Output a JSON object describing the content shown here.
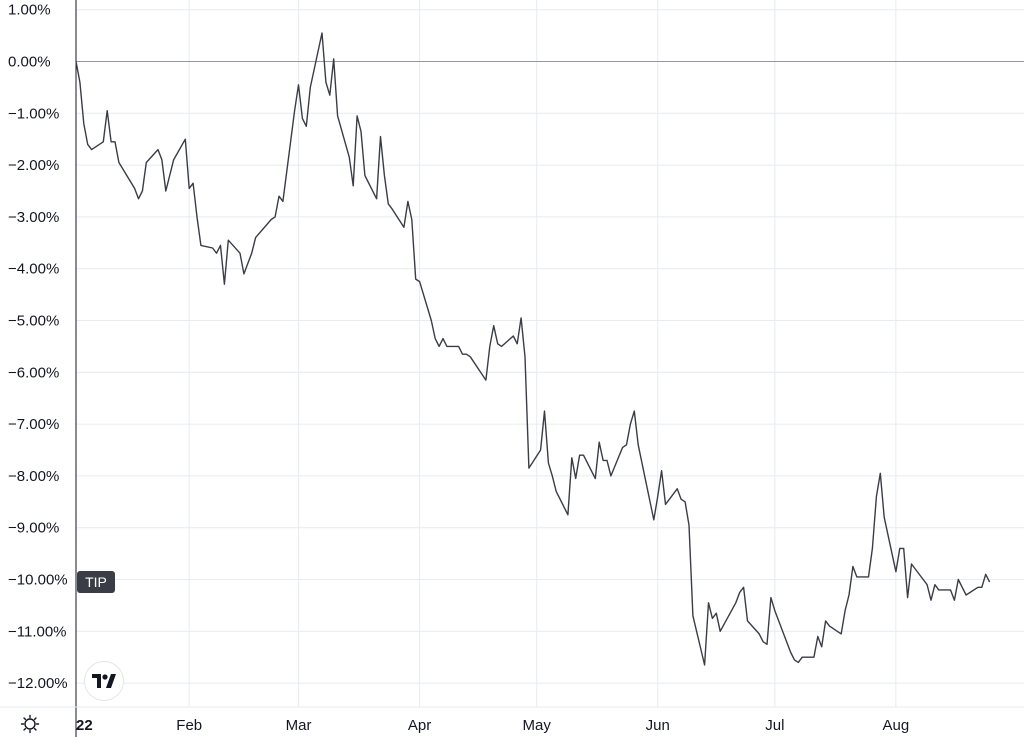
{
  "colors": {
    "series": "#3a3d46",
    "grid": "#e6ecf1",
    "zero_line": "#9598a1",
    "text": "#131722",
    "badge_bg": "#3a3d46",
    "badge_text": "#ffffff"
  },
  "series_badge": {
    "label": "TIP"
  },
  "icons": {
    "logo": "tradingview-logo-icon",
    "settings": "gear-icon"
  },
  "chart_data": {
    "type": "line",
    "x_axis_type": "date",
    "y_tick_labels": [
      "1.00%",
      "0.00%",
      "−1.00%",
      "−2.00%",
      "−3.00%",
      "−4.00%",
      "−5.00%",
      "−6.00%",
      "−7.00%",
      "−8.00%",
      "−9.00%",
      "−10.00%",
      "−11.00%",
      "−12.00%"
    ],
    "y_tick_values": [
      1,
      0,
      -1,
      -2,
      -3,
      -4,
      -5,
      -6,
      -7,
      -8,
      -9,
      -10,
      -11,
      -12
    ],
    "ylim": [
      -12.2,
      1.2
    ],
    "xlim": [
      "2022-01-03",
      "2022-08-31"
    ],
    "x_ticks": [
      {
        "date": "2022-01-03",
        "label": "22",
        "bold": true
      },
      {
        "date": "2022-02-01",
        "label": "Feb",
        "bold": false
      },
      {
        "date": "2022-03-01",
        "label": "Mar",
        "bold": false
      },
      {
        "date": "2022-04-01",
        "label": "Apr",
        "bold": false
      },
      {
        "date": "2022-05-01",
        "label": "May",
        "bold": false
      },
      {
        "date": "2022-06-01",
        "label": "Jun",
        "bold": false
      },
      {
        "date": "2022-07-01",
        "label": "Jul",
        "bold": false
      },
      {
        "date": "2022-08-01",
        "label": "Aug",
        "bold": false
      }
    ],
    "grid": true,
    "series": [
      {
        "label": "TIP",
        "points": [
          [
            "2022-01-03",
            0.0
          ],
          [
            "2022-01-04",
            -0.4
          ],
          [
            "2022-01-05",
            -1.2
          ],
          [
            "2022-01-06",
            -1.6
          ],
          [
            "2022-01-07",
            -1.7
          ],
          [
            "2022-01-10",
            -1.55
          ],
          [
            "2022-01-11",
            -0.95
          ],
          [
            "2022-01-12",
            -1.55
          ],
          [
            "2022-01-13",
            -1.55
          ],
          [
            "2022-01-14",
            -1.95
          ],
          [
            "2022-01-18",
            -2.45
          ],
          [
            "2022-01-19",
            -2.65
          ],
          [
            "2022-01-20",
            -2.5
          ],
          [
            "2022-01-21",
            -1.95
          ],
          [
            "2022-01-24",
            -1.7
          ],
          [
            "2022-01-25",
            -1.9
          ],
          [
            "2022-01-26",
            -2.5
          ],
          [
            "2022-01-27",
            -2.2
          ],
          [
            "2022-01-28",
            -1.9
          ],
          [
            "2022-01-31",
            -1.5
          ],
          [
            "2022-02-01",
            -2.45
          ],
          [
            "2022-02-02",
            -2.35
          ],
          [
            "2022-02-03",
            -3.0
          ],
          [
            "2022-02-04",
            -3.55
          ],
          [
            "2022-02-07",
            -3.6
          ],
          [
            "2022-02-08",
            -3.7
          ],
          [
            "2022-02-09",
            -3.55
          ],
          [
            "2022-02-10",
            -4.3
          ],
          [
            "2022-02-11",
            -3.45
          ],
          [
            "2022-02-14",
            -3.7
          ],
          [
            "2022-02-15",
            -4.1
          ],
          [
            "2022-02-16",
            -3.9
          ],
          [
            "2022-02-17",
            -3.7
          ],
          [
            "2022-02-18",
            -3.4
          ],
          [
            "2022-02-22",
            -3.05
          ],
          [
            "2022-02-23",
            -3.0
          ],
          [
            "2022-02-24",
            -2.6
          ],
          [
            "2022-02-25",
            -2.7
          ],
          [
            "2022-02-28",
            -0.95
          ],
          [
            "2022-03-01",
            -0.45
          ],
          [
            "2022-03-02",
            -1.1
          ],
          [
            "2022-03-03",
            -1.25
          ],
          [
            "2022-03-04",
            -0.5
          ],
          [
            "2022-03-07",
            0.55
          ],
          [
            "2022-03-08",
            -0.4
          ],
          [
            "2022-03-09",
            -0.65
          ],
          [
            "2022-03-10",
            0.05
          ],
          [
            "2022-03-11",
            -1.05
          ],
          [
            "2022-03-14",
            -1.85
          ],
          [
            "2022-03-15",
            -2.4
          ],
          [
            "2022-03-16",
            -1.05
          ],
          [
            "2022-03-17",
            -1.35
          ],
          [
            "2022-03-18",
            -2.2
          ],
          [
            "2022-03-21",
            -2.65
          ],
          [
            "2022-03-22",
            -1.45
          ],
          [
            "2022-03-23",
            -2.2
          ],
          [
            "2022-03-24",
            -2.75
          ],
          [
            "2022-03-25",
            -2.85
          ],
          [
            "2022-03-28",
            -3.2
          ],
          [
            "2022-03-29",
            -2.7
          ],
          [
            "2022-03-30",
            -3.05
          ],
          [
            "2022-03-31",
            -4.2
          ],
          [
            "2022-04-01",
            -4.25
          ],
          [
            "2022-04-04",
            -5.0
          ],
          [
            "2022-04-05",
            -5.35
          ],
          [
            "2022-04-06",
            -5.5
          ],
          [
            "2022-04-07",
            -5.35
          ],
          [
            "2022-04-08",
            -5.5
          ],
          [
            "2022-04-11",
            -5.5
          ],
          [
            "2022-04-12",
            -5.65
          ],
          [
            "2022-04-13",
            -5.65
          ],
          [
            "2022-04-14",
            -5.7
          ],
          [
            "2022-04-18",
            -6.15
          ],
          [
            "2022-04-19",
            -5.5
          ],
          [
            "2022-04-20",
            -5.1
          ],
          [
            "2022-04-21",
            -5.45
          ],
          [
            "2022-04-22",
            -5.5
          ],
          [
            "2022-04-25",
            -5.3
          ],
          [
            "2022-04-26",
            -5.45
          ],
          [
            "2022-04-27",
            -4.95
          ],
          [
            "2022-04-28",
            -5.7
          ],
          [
            "2022-04-29",
            -7.85
          ],
          [
            "2022-05-02",
            -7.5
          ],
          [
            "2022-05-03",
            -6.75
          ],
          [
            "2022-05-04",
            -7.75
          ],
          [
            "2022-05-05",
            -8.0
          ],
          [
            "2022-05-06",
            -8.3
          ],
          [
            "2022-05-09",
            -8.75
          ],
          [
            "2022-05-10",
            -7.65
          ],
          [
            "2022-05-11",
            -8.05
          ],
          [
            "2022-05-12",
            -7.6
          ],
          [
            "2022-05-13",
            -7.6
          ],
          [
            "2022-05-16",
            -8.05
          ],
          [
            "2022-05-17",
            -7.35
          ],
          [
            "2022-05-18",
            -7.7
          ],
          [
            "2022-05-19",
            -7.7
          ],
          [
            "2022-05-20",
            -8.0
          ],
          [
            "2022-05-23",
            -7.45
          ],
          [
            "2022-05-24",
            -7.4
          ],
          [
            "2022-05-25",
            -7.0
          ],
          [
            "2022-05-26",
            -6.75
          ],
          [
            "2022-05-27",
            -7.4
          ],
          [
            "2022-05-31",
            -8.85
          ],
          [
            "2022-06-01",
            -8.4
          ],
          [
            "2022-06-02",
            -7.9
          ],
          [
            "2022-06-03",
            -8.55
          ],
          [
            "2022-06-06",
            -8.25
          ],
          [
            "2022-06-07",
            -8.45
          ],
          [
            "2022-06-08",
            -8.5
          ],
          [
            "2022-06-09",
            -8.95
          ],
          [
            "2022-06-10",
            -10.7
          ],
          [
            "2022-06-13",
            -11.65
          ],
          [
            "2022-06-14",
            -10.45
          ],
          [
            "2022-06-15",
            -10.75
          ],
          [
            "2022-06-16",
            -10.65
          ],
          [
            "2022-06-17",
            -11.0
          ],
          [
            "2022-06-21",
            -10.45
          ],
          [
            "2022-06-22",
            -10.25
          ],
          [
            "2022-06-23",
            -10.15
          ],
          [
            "2022-06-24",
            -10.8
          ],
          [
            "2022-06-27",
            -11.05
          ],
          [
            "2022-06-28",
            -11.2
          ],
          [
            "2022-06-29",
            -11.25
          ],
          [
            "2022-06-30",
            -10.35
          ],
          [
            "2022-07-01",
            -10.6
          ],
          [
            "2022-07-05",
            -11.4
          ],
          [
            "2022-07-06",
            -11.55
          ],
          [
            "2022-07-07",
            -11.6
          ],
          [
            "2022-07-08",
            -11.5
          ],
          [
            "2022-07-11",
            -11.5
          ],
          [
            "2022-07-12",
            -11.1
          ],
          [
            "2022-07-13",
            -11.3
          ],
          [
            "2022-07-14",
            -10.8
          ],
          [
            "2022-07-15",
            -10.9
          ],
          [
            "2022-07-18",
            -11.05
          ],
          [
            "2022-07-19",
            -10.6
          ],
          [
            "2022-07-20",
            -10.3
          ],
          [
            "2022-07-21",
            -9.75
          ],
          [
            "2022-07-22",
            -9.95
          ],
          [
            "2022-07-25",
            -9.95
          ],
          [
            "2022-07-26",
            -9.4
          ],
          [
            "2022-07-27",
            -8.4
          ],
          [
            "2022-07-28",
            -7.95
          ],
          [
            "2022-07-29",
            -8.8
          ],
          [
            "2022-08-01",
            -9.85
          ],
          [
            "2022-08-02",
            -9.4
          ],
          [
            "2022-08-03",
            -9.4
          ],
          [
            "2022-08-04",
            -10.35
          ],
          [
            "2022-08-05",
            -9.7
          ],
          [
            "2022-08-08",
            -10.0
          ],
          [
            "2022-08-09",
            -10.1
          ],
          [
            "2022-08-10",
            -10.4
          ],
          [
            "2022-08-11",
            -10.1
          ],
          [
            "2022-08-12",
            -10.2
          ],
          [
            "2022-08-15",
            -10.2
          ],
          [
            "2022-08-16",
            -10.4
          ],
          [
            "2022-08-17",
            -10.0
          ],
          [
            "2022-08-18",
            -10.15
          ],
          [
            "2022-08-19",
            -10.3
          ],
          [
            "2022-08-22",
            -10.15
          ],
          [
            "2022-08-23",
            -10.15
          ],
          [
            "2022-08-24",
            -9.9
          ],
          [
            "2022-08-25",
            -10.05
          ]
        ]
      }
    ]
  }
}
